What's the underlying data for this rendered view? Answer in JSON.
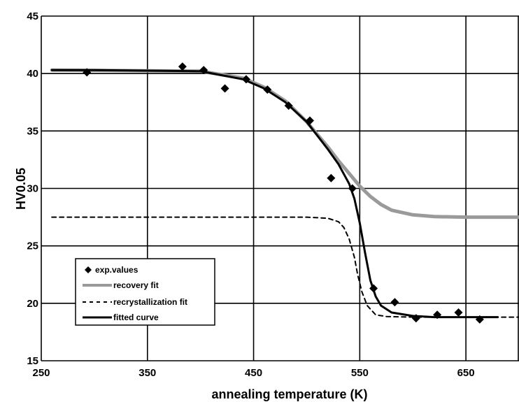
{
  "chart_data": {
    "type": "line",
    "title": "",
    "xlabel": "annealing temperature (K)",
    "ylabel": "HV0.05",
    "xlim": [
      250,
      700
    ],
    "ylim": [
      15,
      45
    ],
    "x_ticks": [
      250,
      350,
      450,
      550,
      650
    ],
    "y_ticks": [
      15,
      20,
      25,
      30,
      35,
      40,
      45
    ],
    "x_tick_labels": [
      "250",
      "350",
      "450",
      "550",
      "650"
    ],
    "y_tick_labels": [
      "15",
      "20",
      "25",
      "30",
      "35",
      "40",
      "45"
    ],
    "grid": true,
    "legend_position": "bottom-left",
    "series": [
      {
        "name": "exp.values",
        "kind": "scatter",
        "marker": "diamond",
        "color": "#000000",
        "points": [
          [
            293,
            40.1
          ],
          [
            383,
            40.6
          ],
          [
            403,
            40.3
          ],
          [
            423,
            38.7
          ],
          [
            443,
            39.5
          ],
          [
            463,
            38.6
          ],
          [
            483,
            37.2
          ],
          [
            503,
            35.9
          ],
          [
            523,
            30.9
          ],
          [
            543,
            30.0
          ],
          [
            563,
            21.3
          ],
          [
            583,
            20.1
          ],
          [
            603,
            18.7
          ],
          [
            623,
            19.0
          ],
          [
            643,
            19.2
          ],
          [
            663,
            18.6
          ]
        ]
      },
      {
        "name": "recovery fit",
        "kind": "line",
        "style": "gray-thick",
        "color": "#9a9a9a",
        "points": [
          [
            260,
            40.3
          ],
          [
            400,
            40.2
          ],
          [
            440,
            39.6
          ],
          [
            460,
            38.8
          ],
          [
            480,
            37.6
          ],
          [
            500,
            35.8
          ],
          [
            510,
            34.7
          ],
          [
            520,
            33.6
          ],
          [
            530,
            32.4
          ],
          [
            540,
            31.3
          ],
          [
            550,
            30.2
          ],
          [
            560,
            29.3
          ],
          [
            570,
            28.6
          ],
          [
            580,
            28.1
          ],
          [
            600,
            27.7
          ],
          [
            620,
            27.55
          ],
          [
            650,
            27.5
          ],
          [
            700,
            27.5
          ]
        ]
      },
      {
        "name": "recrystallization fit",
        "kind": "line",
        "style": "dashed",
        "color": "#000000",
        "points": [
          [
            260,
            27.5
          ],
          [
            500,
            27.5
          ],
          [
            520,
            27.4
          ],
          [
            530,
            27.1
          ],
          [
            535,
            26.6
          ],
          [
            540,
            25.6
          ],
          [
            545,
            24.0
          ],
          [
            548,
            22.5
          ],
          [
            552,
            21.0
          ],
          [
            557,
            19.8
          ],
          [
            565,
            19.0
          ],
          [
            575,
            18.85
          ],
          [
            600,
            18.8
          ],
          [
            700,
            18.8
          ]
        ]
      },
      {
        "name": "fitted curve",
        "kind": "line",
        "style": "solid",
        "color": "#000000",
        "points": [
          [
            260,
            40.3
          ],
          [
            300,
            40.3
          ],
          [
            400,
            40.2
          ],
          [
            440,
            39.5
          ],
          [
            460,
            38.7
          ],
          [
            480,
            37.5
          ],
          [
            500,
            35.8
          ],
          [
            520,
            33.4
          ],
          [
            530,
            32.1
          ],
          [
            540,
            30.4
          ],
          [
            545,
            29.1
          ],
          [
            550,
            27.0
          ],
          [
            555,
            24.4
          ],
          [
            560,
            22.0
          ],
          [
            565,
            20.6
          ],
          [
            570,
            19.8
          ],
          [
            580,
            19.2
          ],
          [
            600,
            18.9
          ],
          [
            620,
            18.8
          ],
          [
            680,
            18.8
          ]
        ]
      }
    ]
  }
}
